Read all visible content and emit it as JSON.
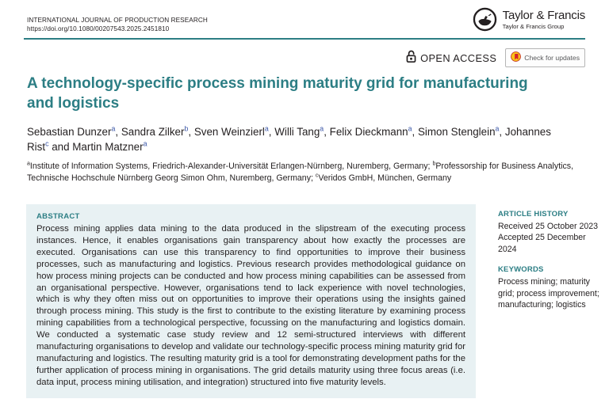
{
  "header": {
    "journal": "INTERNATIONAL JOURNAL OF PRODUCTION RESEARCH",
    "doi": "https://doi.org/10.1080/00207543.2025.2451810",
    "publisher": {
      "name": "Taylor & Francis",
      "group": "Taylor & Francis Group"
    },
    "open_access_label": "OPEN ACCESS",
    "check_updates_label": "Check for updates"
  },
  "article": {
    "title": "A technology-specific process mining maturity grid for manufacturing and logistics",
    "authors": [
      {
        "name": "Sebastian Dunzer",
        "sup": "a"
      },
      {
        "name": "Sandra Zilker",
        "sup": "b"
      },
      {
        "name": "Sven Weinzierl",
        "sup": "a"
      },
      {
        "name": "Willi Tang",
        "sup": "a"
      },
      {
        "name": "Felix Dieckmann",
        "sup": "a"
      },
      {
        "name": "Simon Stenglein",
        "sup": "a"
      },
      {
        "name": "Johannes Rist",
        "sup": "c"
      },
      {
        "name": "Martin Matzner",
        "sup": "a"
      }
    ],
    "affiliations": [
      {
        "sup": "a",
        "text": "Institute of Information Systems, Friedrich-Alexander-Universität Erlangen-Nürnberg, Nuremberg, Germany"
      },
      {
        "sup": "b",
        "text": "Professorship for Business Analytics, Technische Hochschule Nürnberg Georg Simon Ohm, Nuremberg, Germany"
      },
      {
        "sup": "c",
        "text": "Veridos GmbH, München, Germany"
      }
    ]
  },
  "abstract": {
    "heading": "ABSTRACT",
    "text": "Process mining applies data mining to the data produced in the slipstream of the executing process instances. Hence, it enables organisations gain transparency about how exactly the processes are executed. Organisations can use this transparency to find opportunities to improve their business processes, such as manufacturing and logistics. Previous research provides methodological guidance on how process mining projects can be conducted and how process mining capabilities can be assessed from an organisational perspective. However, organisations tend to lack experience with novel technologies, which is why they often miss out on opportunities to improve their operations using the insights gained through process mining. This study is the first to contribute to the existing literature by examining process mining capabilities from a technological perspective, focussing on the manufacturing and logistics domain. We conducted a systematic case study review and 12 semi-structured interviews with different manufacturing organisations to develop and validate our technology-specific process mining maturity grid for manufacturing and logistics. The resulting maturity grid is a tool for demonstrating development paths for the further application of process mining in organisations. The grid details maturity using three focus areas (i.e. data input, process mining utilisation, and integration) structured into five maturity levels."
  },
  "sidebar": {
    "article_history": {
      "heading": "ARTICLE HISTORY",
      "received": "Received 25 October 2023",
      "accepted": "Accepted 25 December 2024"
    },
    "keywords": {
      "heading": "KEYWORDS",
      "text": "Process mining; maturity grid; process improvement; manufacturing; logistics"
    }
  },
  "icons": {
    "publisher_logo": "lamp-icon",
    "open_access": "open-lock-icon",
    "check_updates": "crossmark-icon"
  },
  "colors": {
    "accent_teal": "#2c7e84",
    "abstract_background": "#e8f1f3",
    "superscript_blue": "#3b57a8",
    "body_text": "#231f20"
  }
}
